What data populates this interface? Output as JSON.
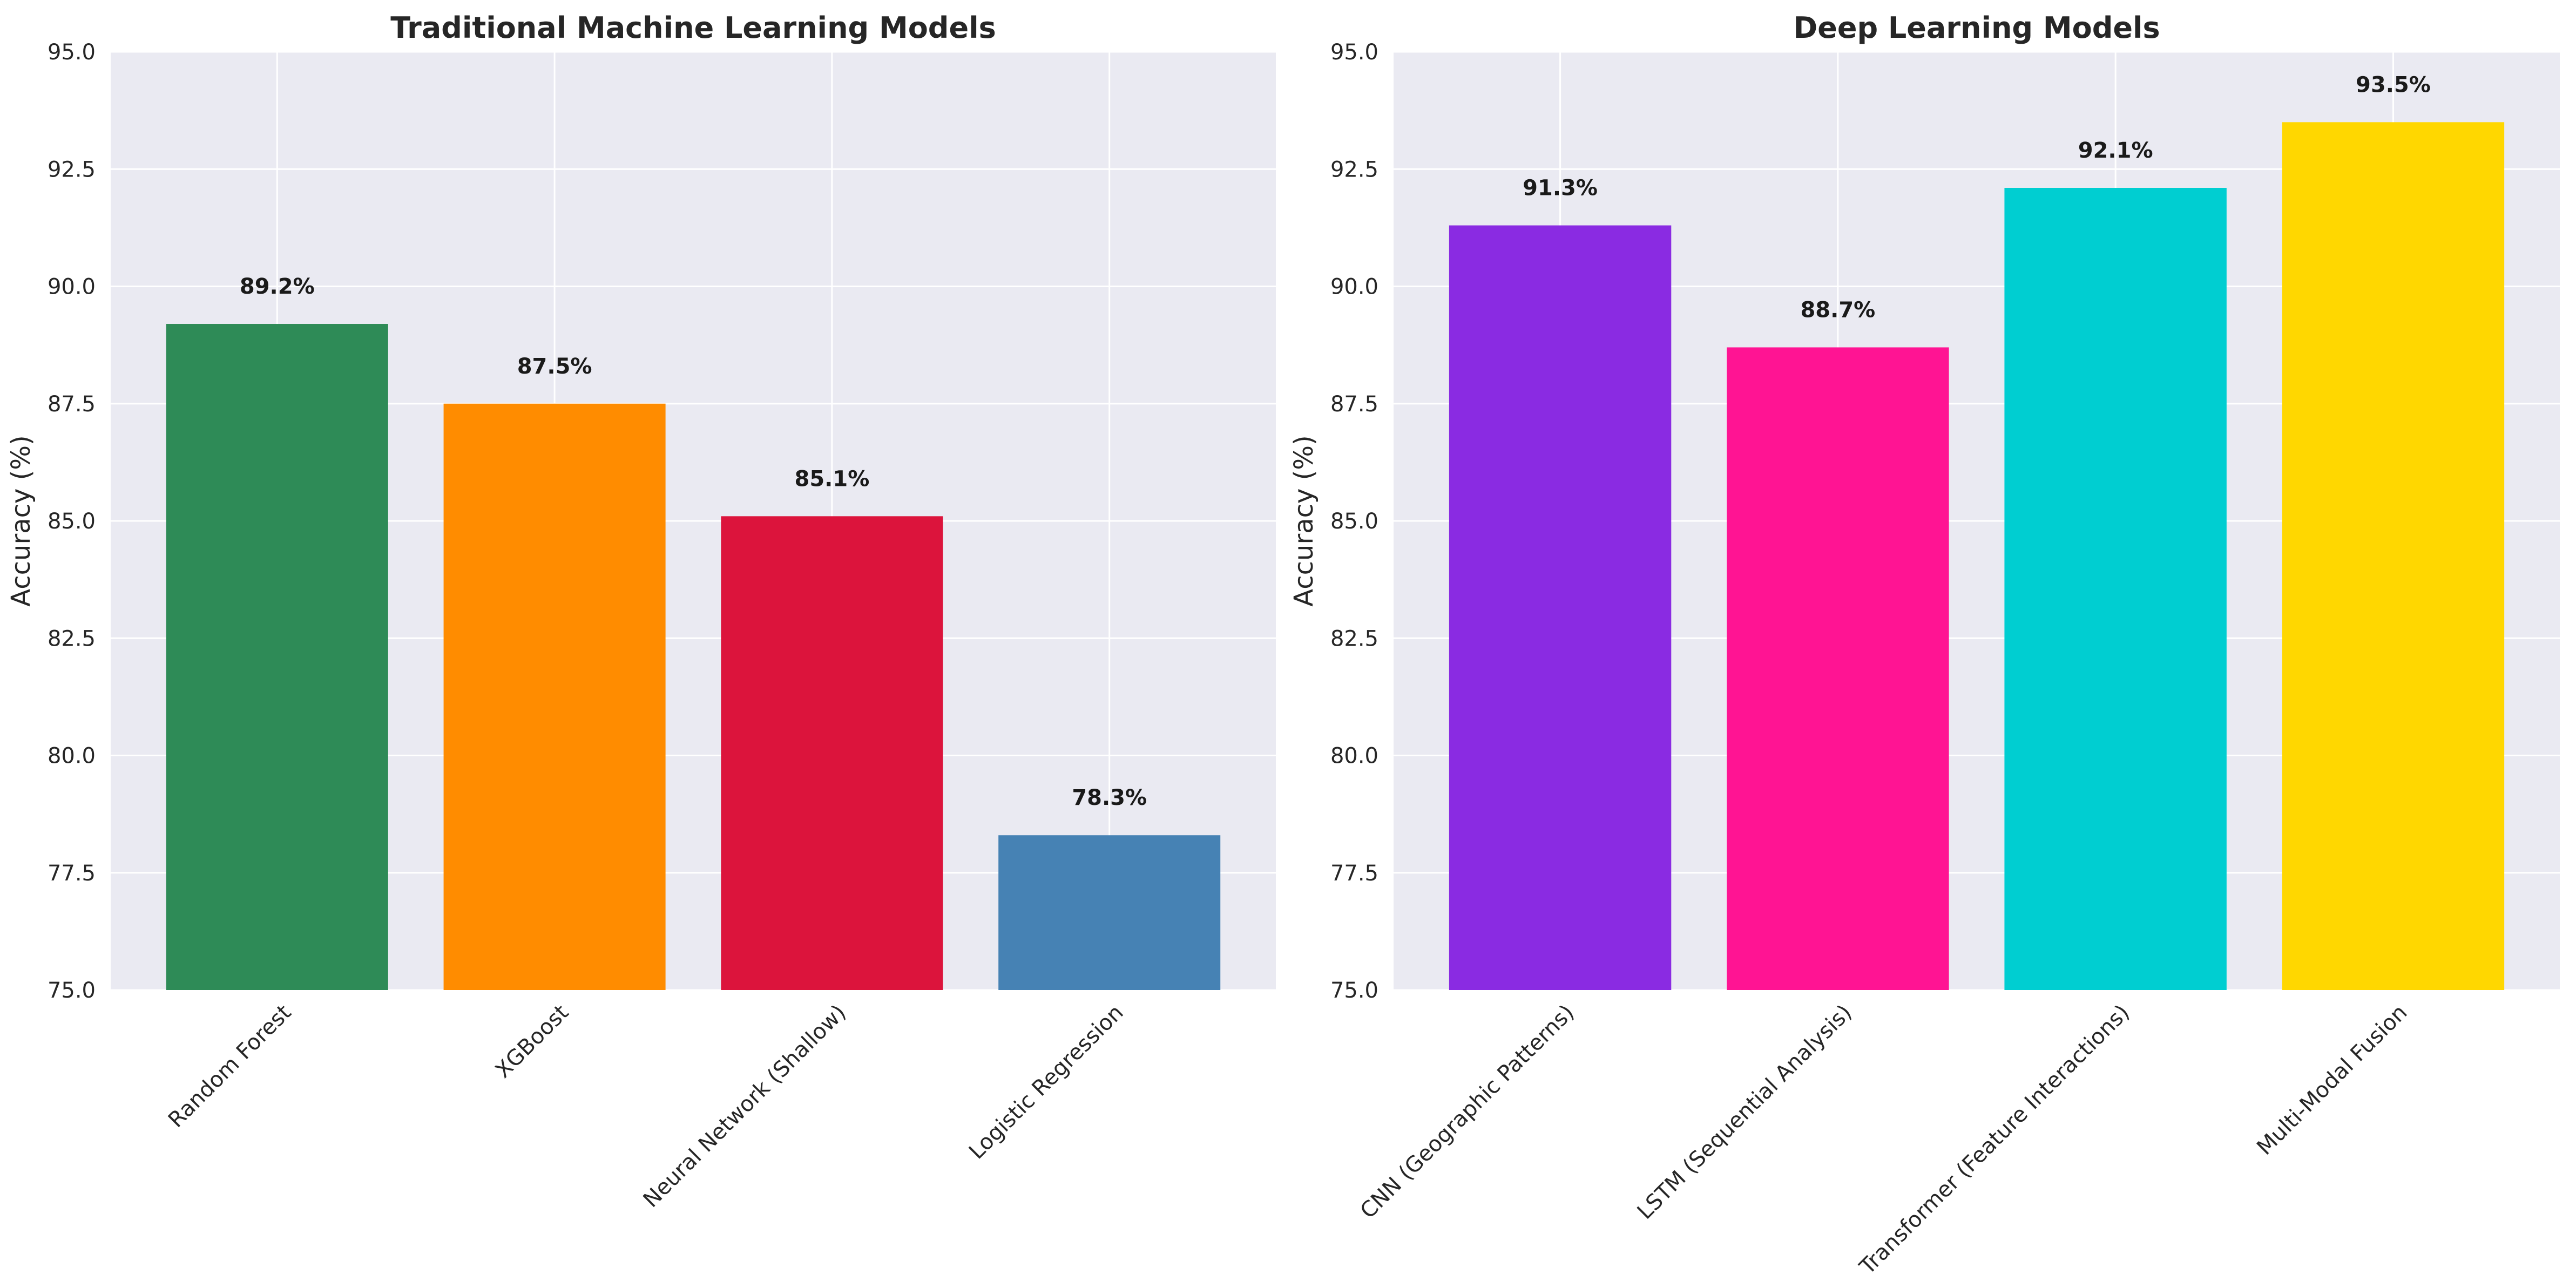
{
  "chart_data": [
    {
      "type": "bar",
      "title": "Traditional Machine Learning Models",
      "xlabel": "",
      "ylabel": "Accuracy (%)",
      "ylim": [
        75,
        95
      ],
      "yticks": [
        75.0,
        77.5,
        80.0,
        82.5,
        85.0,
        87.5,
        90.0,
        92.5,
        95.0
      ],
      "ytick_labels": [
        "75.0",
        "77.5",
        "80.0",
        "82.5",
        "85.0",
        "87.5",
        "90.0",
        "92.5",
        "95.0"
      ],
      "categories": [
        "Random Forest",
        "XGBoost",
        "Neural Network (Shallow)",
        "Logistic Regression"
      ],
      "values": [
        89.2,
        87.5,
        85.1,
        78.3
      ],
      "value_labels": [
        "89.2%",
        "87.5%",
        "85.1%",
        "78.3%"
      ],
      "colors": [
        "#2e8b57",
        "#ff8c00",
        "#dc143c",
        "#4682b4"
      ],
      "grid": true,
      "background": "#eaeaf2"
    },
    {
      "type": "bar",
      "title": "Deep Learning Models",
      "xlabel": "",
      "ylabel": "Accuracy (%)",
      "ylim": [
        75,
        95
      ],
      "yticks": [
        75.0,
        77.5,
        80.0,
        82.5,
        85.0,
        87.5,
        90.0,
        92.5,
        95.0
      ],
      "ytick_labels": [
        "75.0",
        "77.5",
        "80.0",
        "82.5",
        "85.0",
        "87.5",
        "90.0",
        "92.5",
        "95.0"
      ],
      "categories": [
        "CNN (Geographic Patterns)",
        "LSTM (Sequential Analysis)",
        "Transformer (Feature Interactions)",
        "Multi-Modal Fusion"
      ],
      "values": [
        91.3,
        88.7,
        92.1,
        93.5
      ],
      "value_labels": [
        "91.3%",
        "88.7%",
        "92.1%",
        "93.5%"
      ],
      "colors": [
        "#8a2be2",
        "#ff1493",
        "#00ced1",
        "#ffd700"
      ],
      "grid": true,
      "background": "#eaeaf2"
    }
  ]
}
